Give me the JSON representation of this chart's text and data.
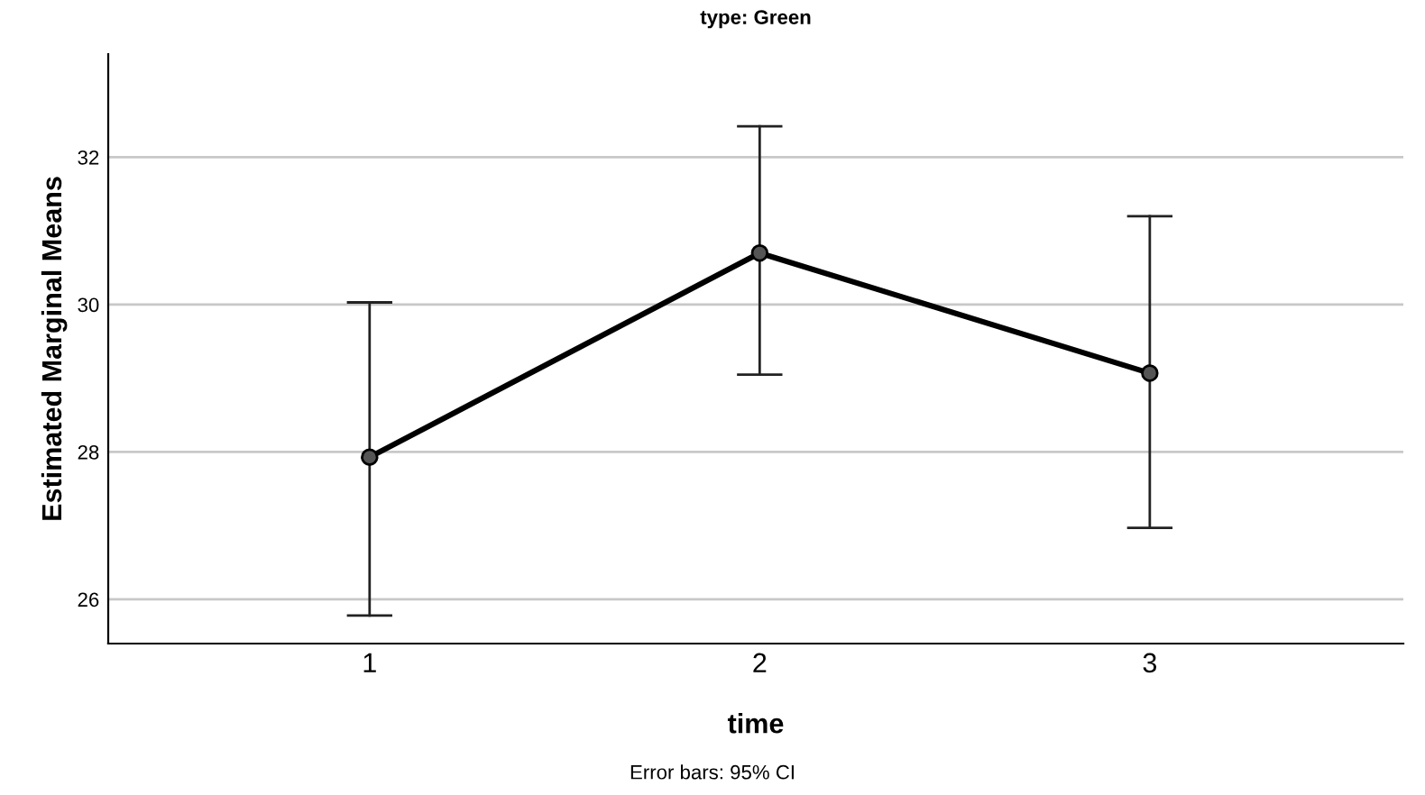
{
  "chart_data": {
    "type": "line",
    "title": "type: Green",
    "xlabel": "time",
    "ylabel": "Estimated Marginal Means",
    "categories": [
      "1",
      "2",
      "3"
    ],
    "series": [
      {
        "color": "#000000",
        "values": [
          27.93,
          30.7,
          29.07
        ],
        "errors": [
          [
            25.78,
            30.03
          ],
          [
            29.05,
            32.42
          ],
          [
            26.97,
            31.2
          ]
        ]
      }
    ],
    "ylim": [
      25.4,
      33.4
    ],
    "yticks": [
      26,
      28,
      30,
      32
    ],
    "grid": "y",
    "marker": "circle",
    "line_style": "solid",
    "annotations": [
      "Error bars: 95% CI"
    ]
  }
}
